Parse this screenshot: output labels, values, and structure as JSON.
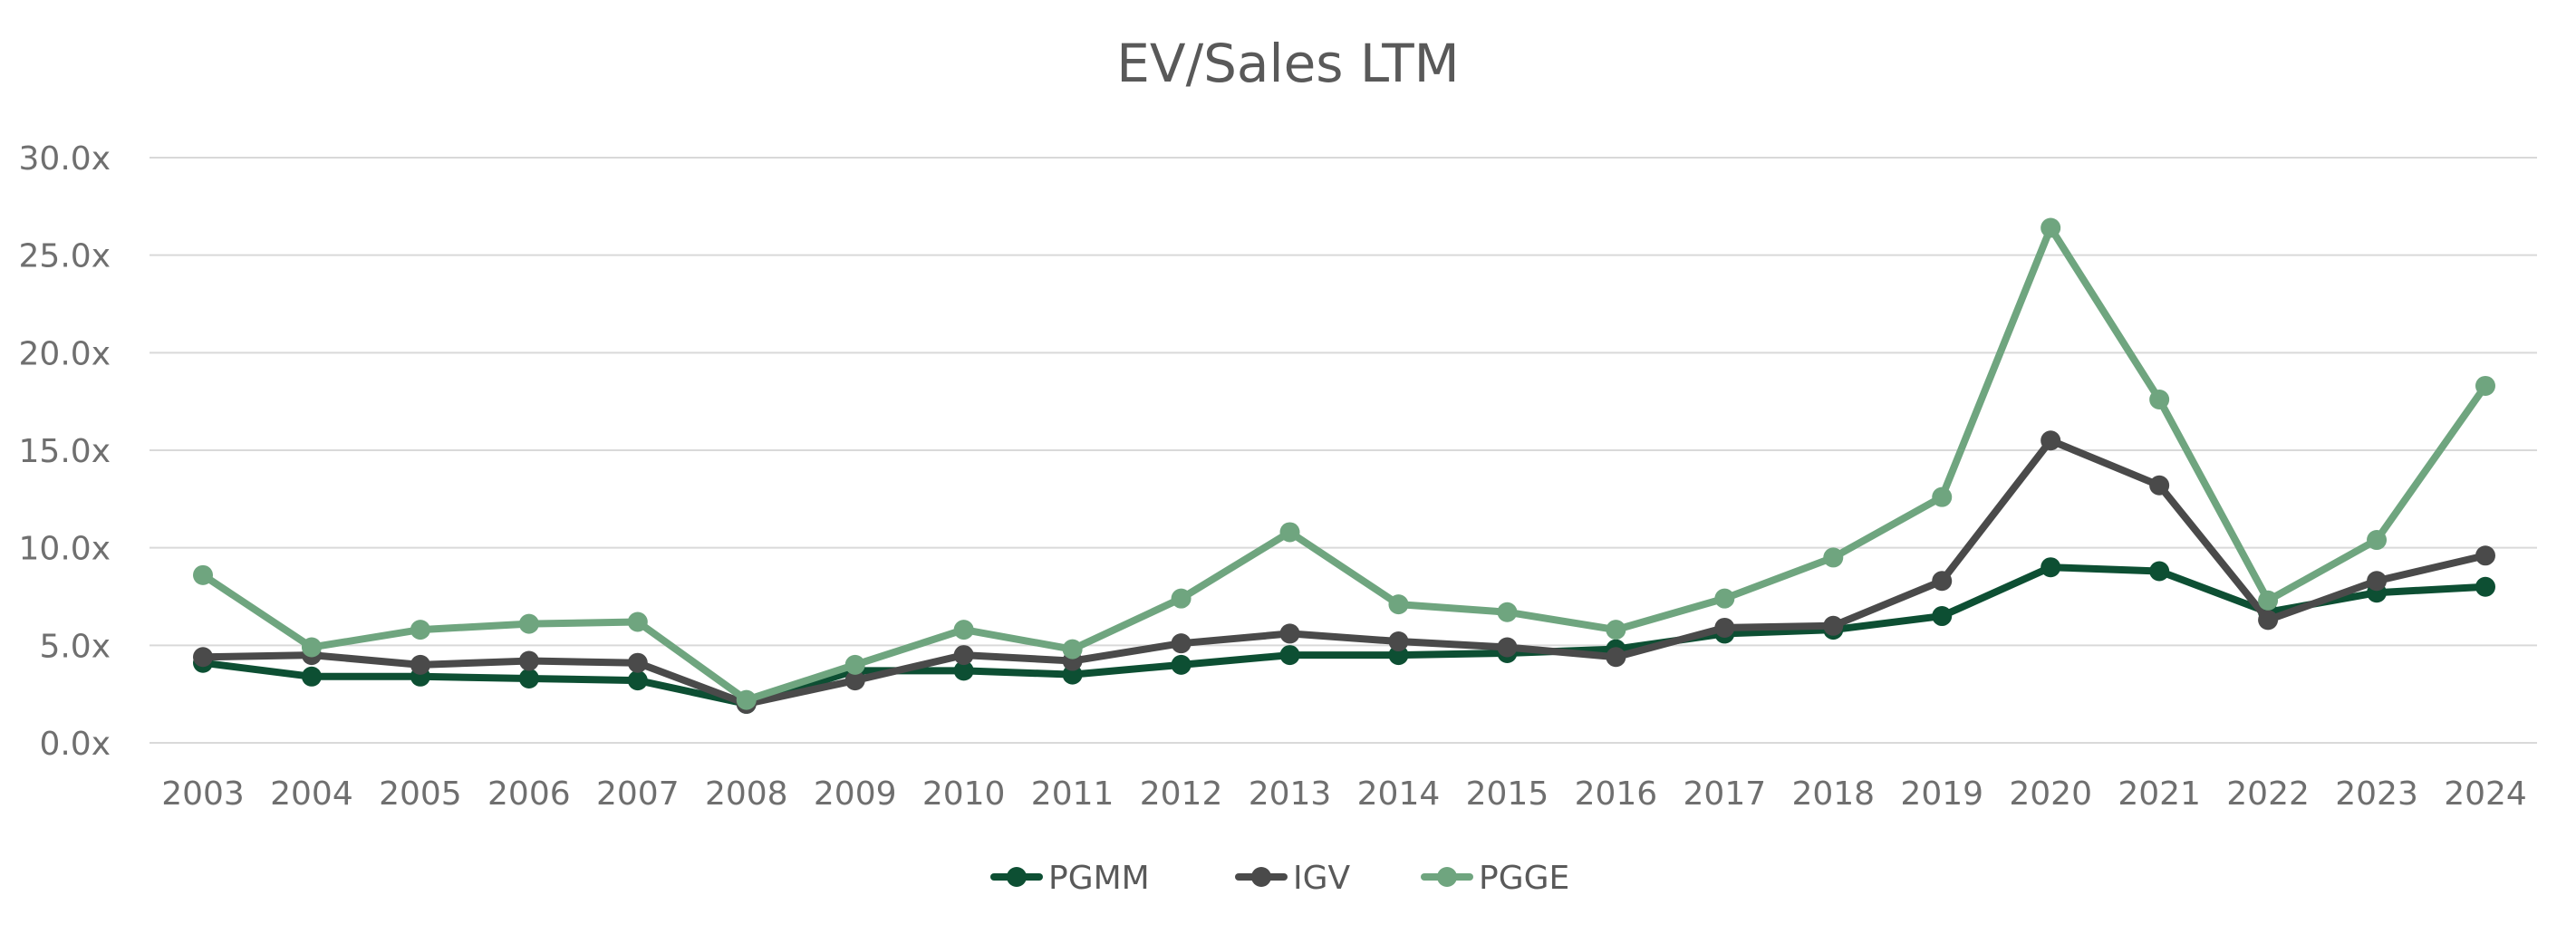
{
  "chart_data": {
    "type": "line",
    "title": "EV/Sales LTM",
    "xlabel": "",
    "ylabel": "",
    "categories": [
      "2003",
      "2004",
      "2005",
      "2006",
      "2007",
      "2008",
      "2009",
      "2010",
      "2011",
      "2012",
      "2013",
      "2014",
      "2015",
      "2016",
      "2017",
      "2018",
      "2019",
      "2020",
      "2021",
      "2022",
      "2023",
      "2024"
    ],
    "y_ticks": [
      "0.0x",
      "5.0x",
      "10.0x",
      "15.0x",
      "20.0x",
      "25.0x",
      "30.0x"
    ],
    "ylim": [
      0,
      30
    ],
    "grid": true,
    "legend_position": "bottom",
    "series": [
      {
        "name": "PGMM",
        "color": "#0d4f33",
        "values": [
          4.1,
          3.4,
          3.4,
          3.3,
          3.2,
          2.0,
          3.7,
          3.7,
          3.5,
          4.0,
          4.5,
          4.5,
          4.6,
          4.8,
          5.6,
          5.8,
          6.5,
          9.0,
          8.8,
          6.7,
          7.7,
          8.0
        ]
      },
      {
        "name": "IGV",
        "color": "#4a4a4a",
        "values": [
          4.4,
          4.5,
          4.0,
          4.2,
          4.1,
          2.0,
          3.2,
          4.5,
          4.2,
          5.1,
          5.6,
          5.2,
          4.9,
          4.4,
          5.9,
          6.0,
          8.3,
          15.5,
          13.2,
          6.3,
          8.3,
          9.6
        ]
      },
      {
        "name": "PGGE",
        "color": "#6fa57f",
        "values": [
          8.6,
          4.9,
          5.8,
          6.1,
          6.2,
          2.2,
          4.0,
          5.8,
          4.8,
          7.4,
          10.8,
          7.1,
          6.7,
          5.8,
          7.4,
          9.5,
          12.6,
          26.4,
          17.6,
          7.3,
          10.4,
          18.3
        ]
      }
    ]
  }
}
